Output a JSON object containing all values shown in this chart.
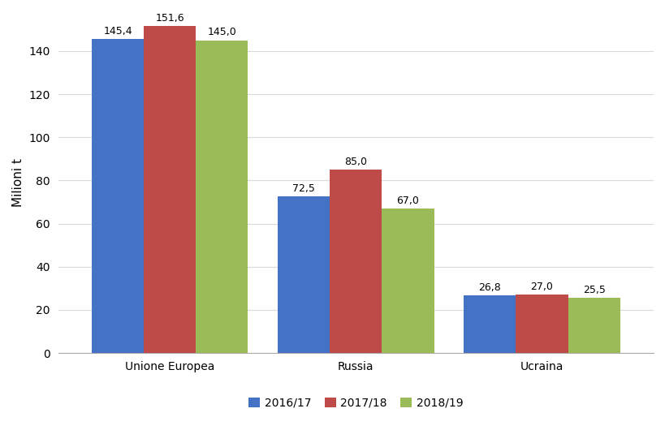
{
  "categories": [
    "Unione Europea",
    "Russia",
    "Ucraina"
  ],
  "series": {
    "2016/17": [
      145.4,
      72.5,
      26.8
    ],
    "2017/18": [
      151.6,
      85.0,
      27.0
    ],
    "2018/19": [
      145.0,
      67.0,
      25.5
    ]
  },
  "series_order": [
    "2016/17",
    "2017/18",
    "2018/19"
  ],
  "colors": {
    "2016/17": "#4472C4",
    "2017/18": "#BE4B48",
    "2018/19": "#9BBB59"
  },
  "ylabel": "Milioni t",
  "ylim": [
    0,
    158
  ],
  "yticks": [
    0,
    20,
    40,
    60,
    80,
    100,
    120,
    140
  ],
  "bar_width": 0.28,
  "background_color": "#FFFFFF",
  "grid_color": "#D9D9D9",
  "label_fontsize": 9,
  "tick_fontsize": 10,
  "ylabel_fontsize": 11,
  "legend_fontsize": 10
}
